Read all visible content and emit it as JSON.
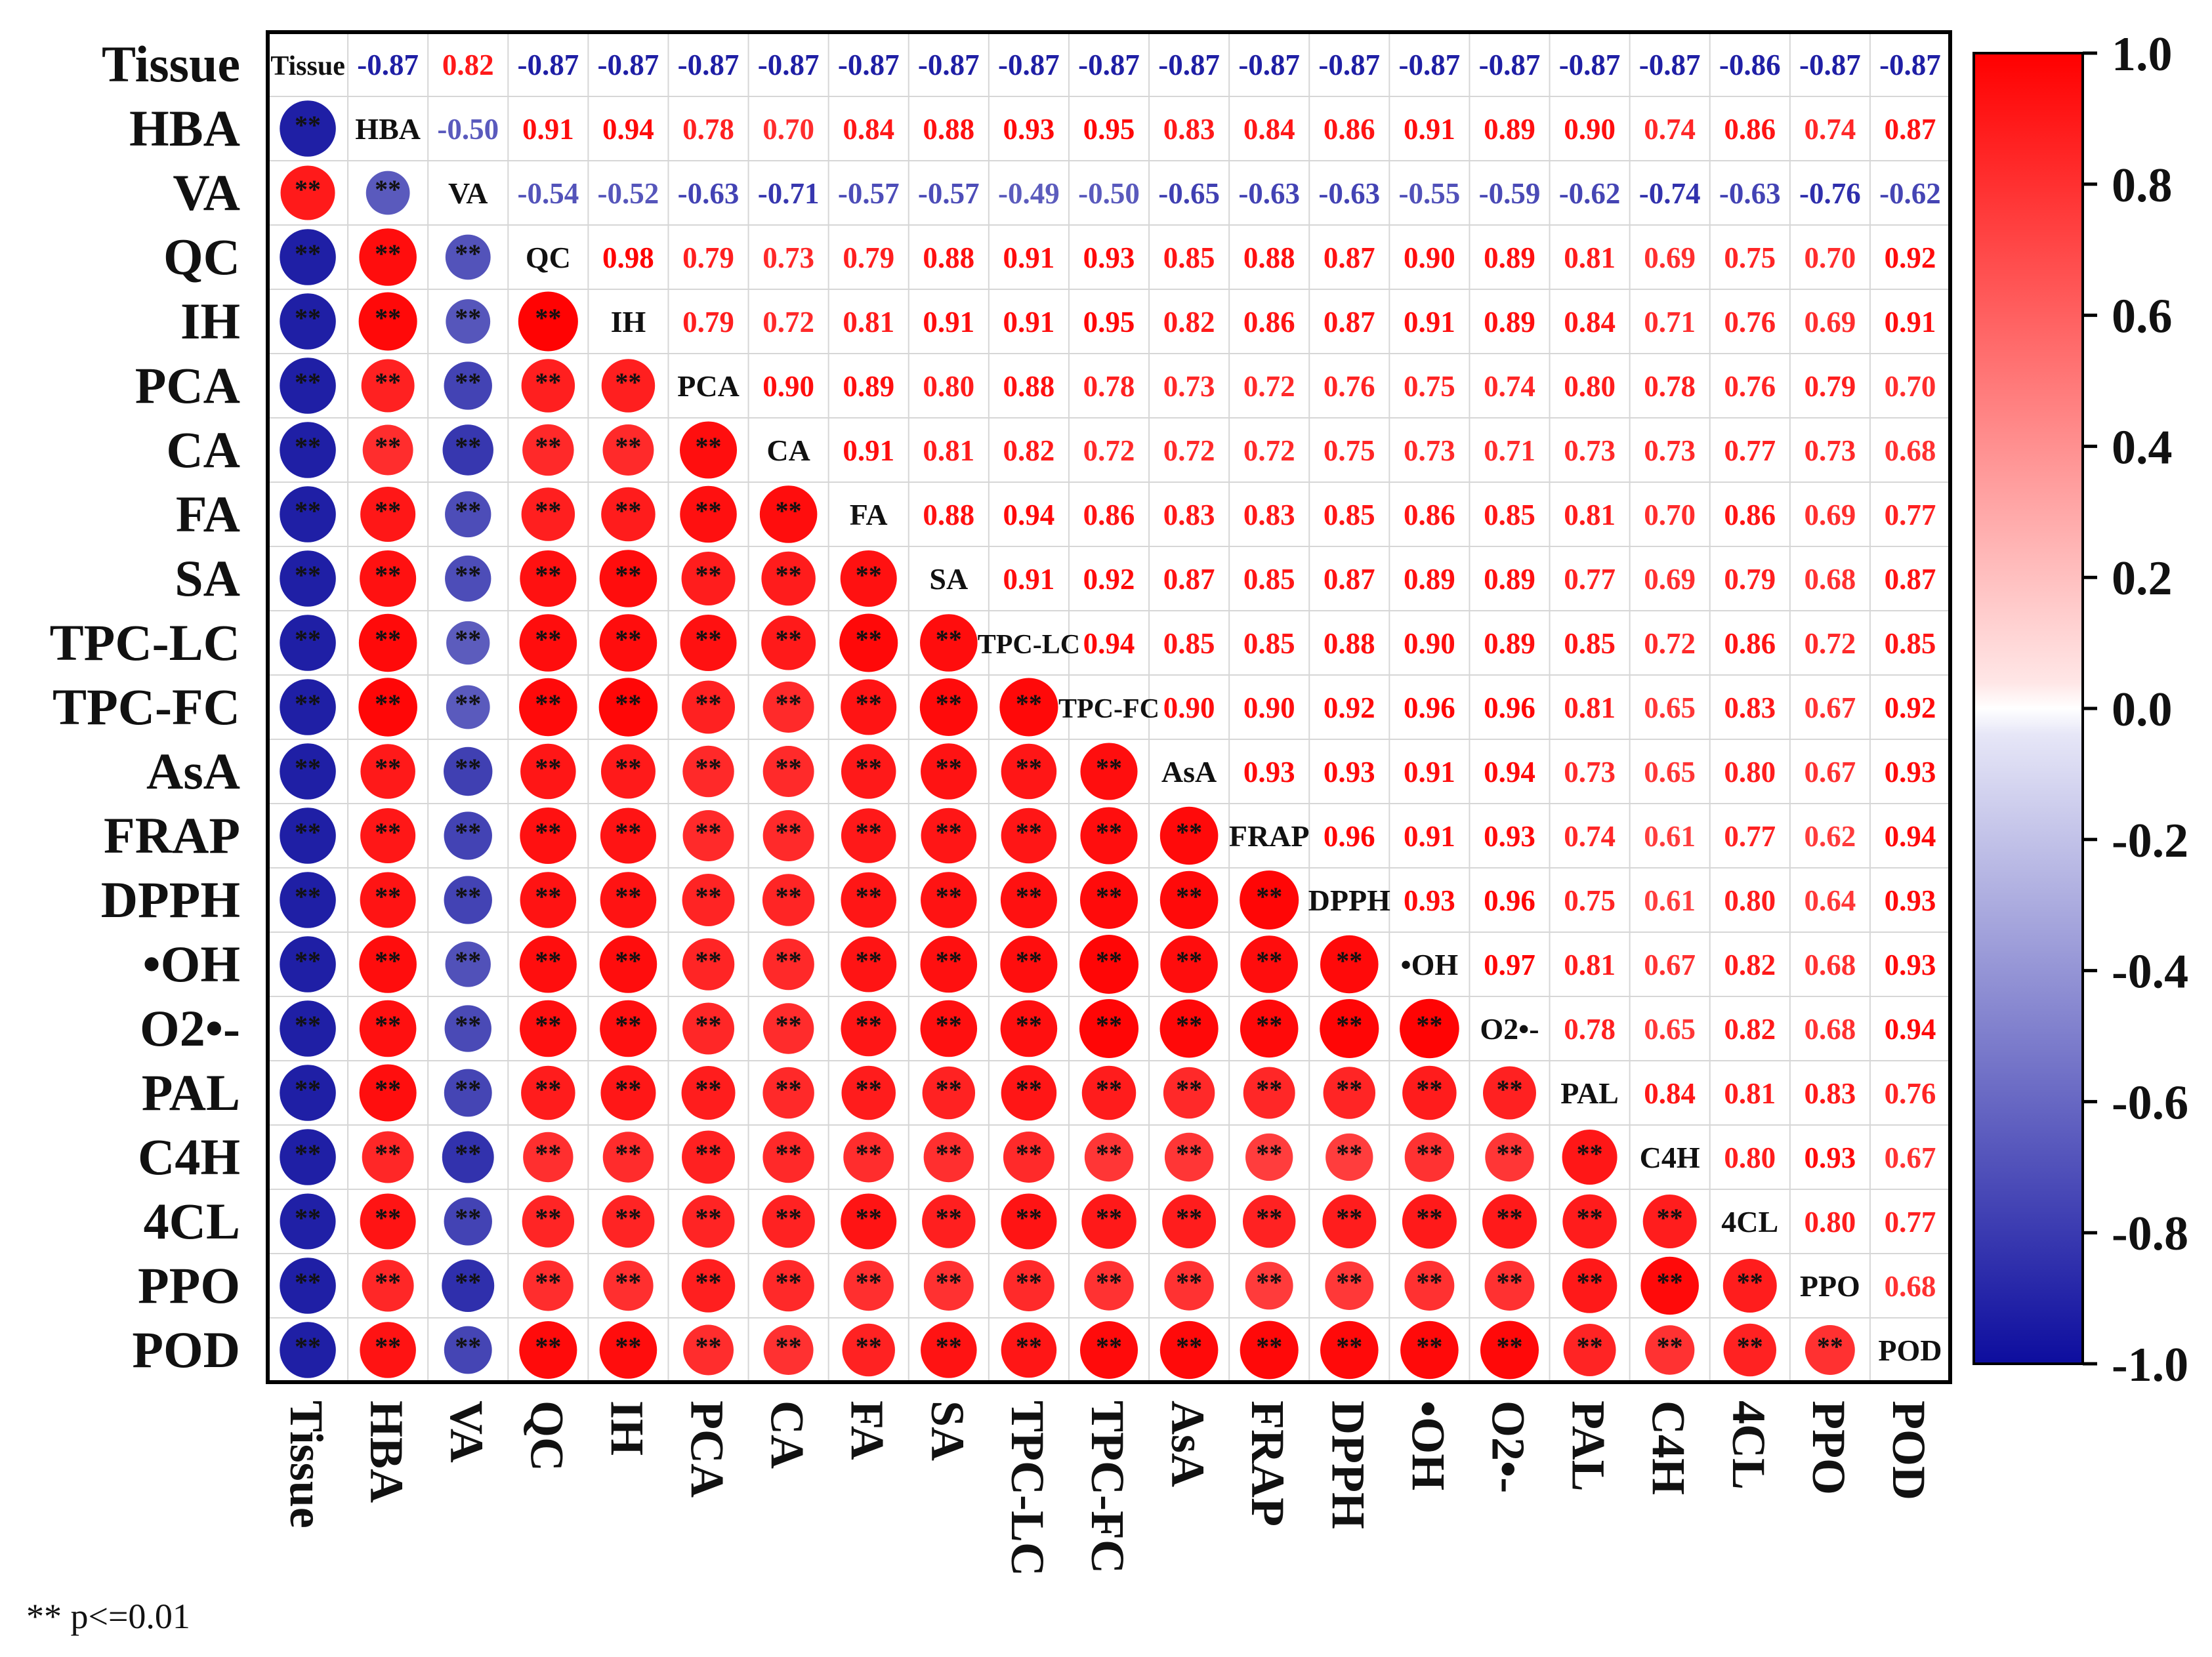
{
  "chart_data": {
    "type": "heatmap",
    "subtype": "correlation-matrix",
    "variables": [
      "Tissue",
      "HBA",
      "VA",
      "QC",
      "IH",
      "PCA",
      "CA",
      "FA",
      "SA",
      "TPC-LC",
      "TPC-FC",
      "AsA",
      "FRAP",
      "DPPH",
      "•OH",
      "O2•-",
      "PAL",
      "C4H",
      "4CL",
      "PPO",
      "POD"
    ],
    "upper_text": [
      [
        null,
        -0.87,
        0.82,
        -0.87,
        -0.87,
        -0.87,
        -0.87,
        -0.87,
        -0.87,
        -0.87,
        -0.87,
        -0.87,
        -0.87,
        -0.87,
        -0.87,
        -0.87,
        -0.87,
        -0.87,
        -0.86,
        -0.87,
        -0.87
      ],
      [
        null,
        null,
        -0.5,
        0.91,
        0.94,
        0.78,
        0.7,
        0.84,
        0.88,
        0.93,
        0.95,
        0.83,
        0.84,
        0.86,
        0.91,
        0.89,
        0.9,
        0.74,
        0.86,
        0.74,
        0.87
      ],
      [
        null,
        null,
        null,
        -0.54,
        -0.52,
        -0.63,
        -0.71,
        -0.57,
        -0.57,
        -0.49,
        -0.5,
        -0.65,
        -0.63,
        -0.63,
        -0.55,
        -0.59,
        -0.62,
        -0.74,
        -0.63,
        -0.76,
        -0.62
      ],
      [
        null,
        null,
        null,
        null,
        0.98,
        0.79,
        0.73,
        0.79,
        0.88,
        0.91,
        0.93,
        0.85,
        0.88,
        0.87,
        0.9,
        0.89,
        0.81,
        0.69,
        0.75,
        0.7,
        0.92
      ],
      [
        null,
        null,
        null,
        null,
        null,
        0.79,
        0.72,
        0.81,
        0.91,
        0.91,
        0.95,
        0.82,
        0.86,
        0.87,
        0.91,
        0.89,
        0.84,
        0.71,
        0.76,
        0.69,
        0.91
      ],
      [
        null,
        null,
        null,
        null,
        null,
        null,
        0.9,
        0.89,
        0.8,
        0.88,
        0.78,
        0.73,
        0.72,
        0.76,
        0.75,
        0.74,
        0.8,
        0.78,
        0.76,
        0.79,
        0.7
      ],
      [
        null,
        null,
        null,
        null,
        null,
        null,
        null,
        0.91,
        0.81,
        0.82,
        0.72,
        0.72,
        0.72,
        0.75,
        0.73,
        0.71,
        0.73,
        0.73,
        0.77,
        0.73,
        0.68
      ],
      [
        null,
        null,
        null,
        null,
        null,
        null,
        null,
        null,
        0.88,
        0.94,
        0.86,
        0.83,
        0.83,
        0.85,
        0.86,
        0.85,
        0.81,
        0.7,
        0.86,
        0.69,
        0.77
      ],
      [
        null,
        null,
        null,
        null,
        null,
        null,
        null,
        null,
        null,
        0.91,
        0.92,
        0.87,
        0.85,
        0.87,
        0.89,
        0.89,
        0.77,
        0.69,
        0.79,
        0.68,
        0.87
      ],
      [
        null,
        null,
        null,
        null,
        null,
        null,
        null,
        null,
        null,
        null,
        0.94,
        0.85,
        0.85,
        0.88,
        0.9,
        0.89,
        0.85,
        0.72,
        0.86,
        0.72,
        0.85
      ],
      [
        null,
        null,
        null,
        null,
        null,
        null,
        null,
        null,
        null,
        null,
        null,
        0.9,
        0.9,
        0.92,
        0.96,
        0.96,
        0.81,
        0.65,
        0.83,
        0.67,
        0.92
      ],
      [
        null,
        null,
        null,
        null,
        null,
        null,
        null,
        null,
        null,
        null,
        null,
        null,
        0.93,
        0.93,
        0.91,
        0.94,
        0.73,
        0.65,
        0.8,
        0.67,
        0.93
      ],
      [
        null,
        null,
        null,
        null,
        null,
        null,
        null,
        null,
        null,
        null,
        null,
        null,
        null,
        0.96,
        0.91,
        0.93,
        0.74,
        0.61,
        0.77,
        0.62,
        0.94
      ],
      [
        null,
        null,
        null,
        null,
        null,
        null,
        null,
        null,
        null,
        null,
        null,
        null,
        null,
        null,
        0.93,
        0.96,
        0.75,
        0.61,
        0.8,
        0.64,
        0.93
      ],
      [
        null,
        null,
        null,
        null,
        null,
        null,
        null,
        null,
        null,
        null,
        null,
        null,
        null,
        null,
        null,
        0.97,
        0.81,
        0.67,
        0.82,
        0.68,
        0.93
      ],
      [
        null,
        null,
        null,
        null,
        null,
        null,
        null,
        null,
        null,
        null,
        null,
        null,
        null,
        null,
        null,
        null,
        0.78,
        0.65,
        0.82,
        0.68,
        0.94
      ],
      [
        null,
        null,
        null,
        null,
        null,
        null,
        null,
        null,
        null,
        null,
        null,
        null,
        null,
        null,
        null,
        null,
        null,
        0.84,
        0.81,
        0.83,
        0.76
      ],
      [
        null,
        null,
        null,
        null,
        null,
        null,
        null,
        null,
        null,
        null,
        null,
        null,
        null,
        null,
        null,
        null,
        null,
        null,
        0.8,
        0.93,
        0.67
      ],
      [
        null,
        null,
        null,
        null,
        null,
        null,
        null,
        null,
        null,
        null,
        null,
        null,
        null,
        null,
        null,
        null,
        null,
        null,
        null,
        0.8,
        0.77
      ],
      [
        null,
        null,
        null,
        null,
        null,
        null,
        null,
        null,
        null,
        null,
        null,
        null,
        null,
        null,
        null,
        null,
        null,
        null,
        null,
        null,
        0.68
      ]
    ],
    "lower_display": "circles",
    "significance_mark": "**",
    "footnote": "** p<=0.01",
    "colorbar": {
      "range": [
        -1.0,
        1.0
      ],
      "ticks": [
        "1.0",
        "0.8",
        "0.6",
        "0.4",
        "0.2",
        "0.0",
        "-0.2",
        "-0.4",
        "-0.6",
        "-0.8",
        "-1.0"
      ],
      "tick_values": [
        1.0,
        0.8,
        0.6,
        0.4,
        0.2,
        0.0,
        -0.2,
        -0.4,
        -0.6,
        -0.8,
        -1.0
      ],
      "low_color": "#0d0d9e",
      "mid_color": "#ffffff",
      "high_color": "#ff0000"
    },
    "grid": true
  }
}
